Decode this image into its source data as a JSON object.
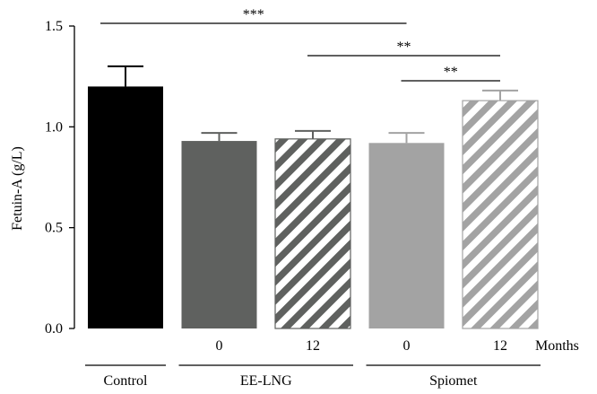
{
  "chart_data": {
    "type": "bar",
    "title": "",
    "xlabel": "",
    "ylabel": "Fetuin-A (g/L)",
    "ylim": [
      0,
      1.5
    ],
    "yticks": [
      "0.0",
      "0.5",
      "1.0",
      "1.5"
    ],
    "error_bars": "upper only",
    "bars": [
      {
        "id": "control",
        "sublabel": "",
        "value": 1.2,
        "error": 0.1,
        "color": "#000000",
        "pattern": "solid"
      },
      {
        "id": "eelng-0",
        "sublabel": "0",
        "value": 0.93,
        "error": 0.04,
        "color": "#5f615f",
        "pattern": "solid"
      },
      {
        "id": "eelng-12",
        "sublabel": "12",
        "value": 0.94,
        "error": 0.04,
        "color": "#5f615f",
        "pattern": "hatched"
      },
      {
        "id": "spiomet-0",
        "sublabel": "0",
        "value": 0.92,
        "error": 0.05,
        "color": "#a3a3a3",
        "pattern": "solid"
      },
      {
        "id": "spiomet-12",
        "sublabel": "12",
        "value": 1.13,
        "error": 0.05,
        "color": "#a3a3a3",
        "pattern": "hatched"
      }
    ],
    "sublabel_axis_title": "Months",
    "groups": [
      {
        "label": "Control",
        "bars": [
          0
        ]
      },
      {
        "label": "EE-LNG",
        "bars": [
          1,
          2
        ]
      },
      {
        "label": "Spiomet",
        "bars": [
          3,
          4
        ]
      }
    ],
    "significance": [
      {
        "from": 0,
        "to": 3,
        "label": "***"
      },
      {
        "from": 2,
        "to": 4,
        "label": "**"
      },
      {
        "from": 3,
        "to": 4,
        "label": "**"
      }
    ]
  }
}
